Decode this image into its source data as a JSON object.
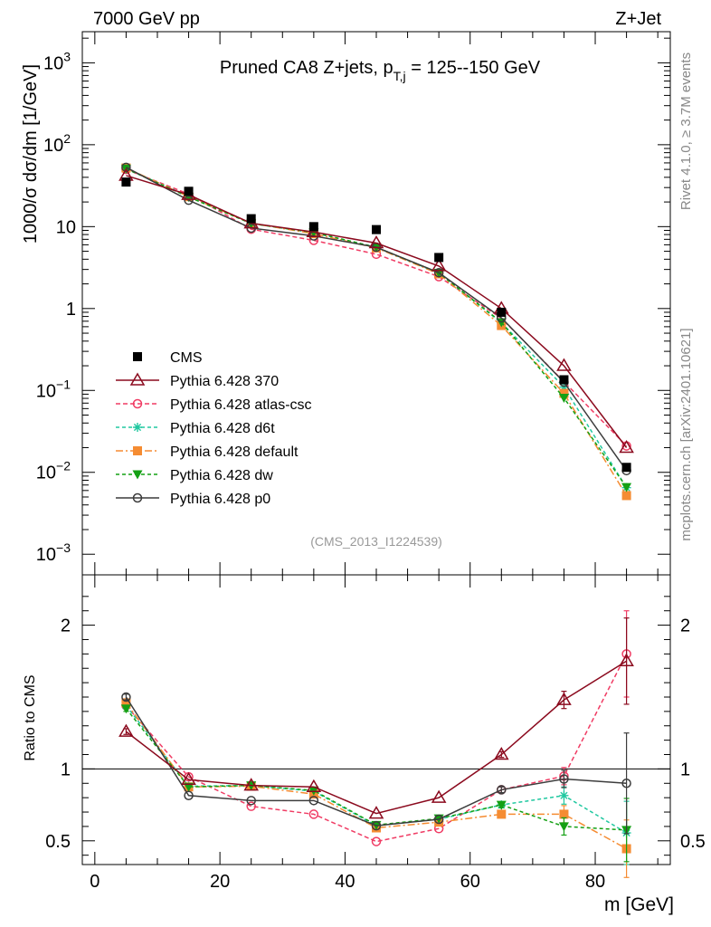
{
  "header": {
    "left": "7000 GeV pp",
    "right": "Z+Jet"
  },
  "side": {
    "rivet": "Rivet 4.1.0, ≥ 3.7M events",
    "mcplots": "mcplots.cern.ch [arXiv:2401.10621]"
  },
  "colors": {
    "cms": "#000000",
    "p370": "#8b0a1e",
    "atlas": "#f03c64",
    "d6t": "#20c8a0",
    "default": "#f58c32",
    "dw": "#14a014",
    "p0": "#3c3c3c"
  },
  "chart_data": [
    {
      "type": "line",
      "panel": "main",
      "title": "Pruned CA8 Z+jets, p_T,j = 125--150 GeV",
      "title_parts": {
        "prefix": "Pruned CA8 Z+jets, p",
        "sub": "T,j",
        "suffix": " = 125--150 GeV"
      },
      "ylabel": "1000/σ  dσ/dm [1/GeV]",
      "analysis_id": "(CMS_2013_I1224539)",
      "yscale": "log",
      "ylim": [
        0.00056,
        2400
      ],
      "xlim": [
        -2,
        92
      ],
      "yticks": [
        {
          "v": 0.001,
          "base": "10",
          "exp": "−3"
        },
        {
          "v": 0.01,
          "base": "10",
          "exp": "−2"
        },
        {
          "v": 0.1,
          "base": "10",
          "exp": "−1"
        },
        {
          "v": 1,
          "base": "1",
          "exp": ""
        },
        {
          "v": 10,
          "base": "10",
          "exp": ""
        },
        {
          "v": 100,
          "base": "10",
          "exp": "2"
        },
        {
          "v": 1000,
          "base": "10",
          "exp": "3"
        }
      ],
      "x": [
        5,
        15,
        25,
        35,
        45,
        55,
        65,
        75,
        85
      ],
      "series": [
        {
          "key": "cms",
          "name": "CMS",
          "values": [
            35,
            27,
            12.5,
            10,
            9.2,
            4.2,
            0.9,
            0.135,
            0.0115
          ]
        },
        {
          "key": "p370",
          "name": "Pythia 6.428 370",
          "values": [
            42,
            24.5,
            11,
            8.6,
            6.3,
            3.3,
            1.0,
            0.2,
            0.02
          ]
        },
        {
          "key": "atlas",
          "name": "Pythia 6.428 atlas-csc",
          "values": [
            50,
            25,
            9.3,
            6.8,
            4.6,
            2.45,
            0.76,
            0.128,
            0.021
          ]
        },
        {
          "key": "d6t",
          "name": "Pythia 6.428 d6t",
          "values": [
            51,
            23.5,
            11,
            8.4,
            5.6,
            2.7,
            0.67,
            0.11,
            0.0065
          ]
        },
        {
          "key": "default",
          "name": "Pythia 6.428 default",
          "values": [
            52,
            23.2,
            11,
            8.2,
            5.5,
            2.65,
            0.62,
            0.092,
            0.0052
          ]
        },
        {
          "key": "dw",
          "name": "Pythia 6.428 dw",
          "values": [
            51,
            23,
            10.9,
            8.5,
            5.6,
            2.72,
            0.68,
            0.081,
            0.0066
          ]
        },
        {
          "key": "p0",
          "name": "Pythia 6.428 p0",
          "values": [
            53,
            21,
            9.6,
            7.7,
            5.6,
            2.74,
            0.77,
            0.126,
            0.0105
          ]
        }
      ]
    },
    {
      "type": "line",
      "panel": "ratio",
      "ylabel": "Ratio to CMS",
      "xlabel": "m [GeV]",
      "ylim": [
        0.335,
        2.35
      ],
      "xlim": [
        -2,
        92
      ],
      "yticks": [
        0.5,
        1,
        2
      ],
      "ytick_labels": [
        "0.5",
        "1",
        "2"
      ],
      "xticks": [
        0,
        20,
        40,
        60,
        80
      ],
      "xtick_labels": [
        "0",
        "20",
        "40",
        "60",
        "80"
      ],
      "x": [
        5,
        15,
        25,
        35,
        45,
        55,
        65,
        75,
        85
      ],
      "series": [
        {
          "key": "p370",
          "name": "Pythia 6.428 370",
          "values": [
            1.26,
            0.925,
            0.885,
            0.875,
            0.69,
            0.8,
            1.1,
            1.48,
            1.75
          ],
          "errors": [
            0.02,
            0.01,
            0.01,
            0.01,
            0.01,
            0.01,
            0.02,
            0.06,
            0.3
          ]
        },
        {
          "key": "atlas",
          "name": "Pythia 6.428 atlas-csc",
          "values": [
            1.44,
            0.945,
            0.74,
            0.685,
            0.495,
            0.585,
            0.855,
            0.95,
            1.8
          ],
          "errors": [
            0.02,
            0.01,
            0.01,
            0.01,
            0.01,
            0.01,
            0.02,
            0.06,
            0.3
          ]
        },
        {
          "key": "d6t",
          "name": "Pythia 6.428 d6t",
          "values": [
            1.44,
            0.88,
            0.885,
            0.845,
            0.605,
            0.65,
            0.75,
            0.815,
            0.555
          ],
          "errors": [
            0.02,
            0.01,
            0.01,
            0.01,
            0.01,
            0.01,
            0.02,
            0.06,
            0.22
          ]
        },
        {
          "key": "default",
          "name": "Pythia 6.428 default",
          "values": [
            1.46,
            0.875,
            0.88,
            0.825,
            0.59,
            0.63,
            0.685,
            0.685,
            0.445
          ],
          "errors": [
            0.02,
            0.01,
            0.01,
            0.01,
            0.01,
            0.01,
            0.02,
            0.06,
            0.2
          ]
        },
        {
          "key": "dw",
          "name": "Pythia 6.428 dw",
          "values": [
            1.42,
            0.875,
            0.885,
            0.85,
            0.61,
            0.655,
            0.75,
            0.6,
            0.575
          ],
          "errors": [
            0.02,
            0.01,
            0.01,
            0.01,
            0.01,
            0.01,
            0.02,
            0.06,
            0.22
          ]
        },
        {
          "key": "p0",
          "name": "Pythia 6.428 p0",
          "values": [
            1.5,
            0.815,
            0.78,
            0.78,
            0.605,
            0.65,
            0.855,
            0.93,
            0.9
          ],
          "errors": [
            0.02,
            0.01,
            0.01,
            0.01,
            0.01,
            0.01,
            0.02,
            0.06,
            0.35
          ]
        }
      ]
    }
  ]
}
